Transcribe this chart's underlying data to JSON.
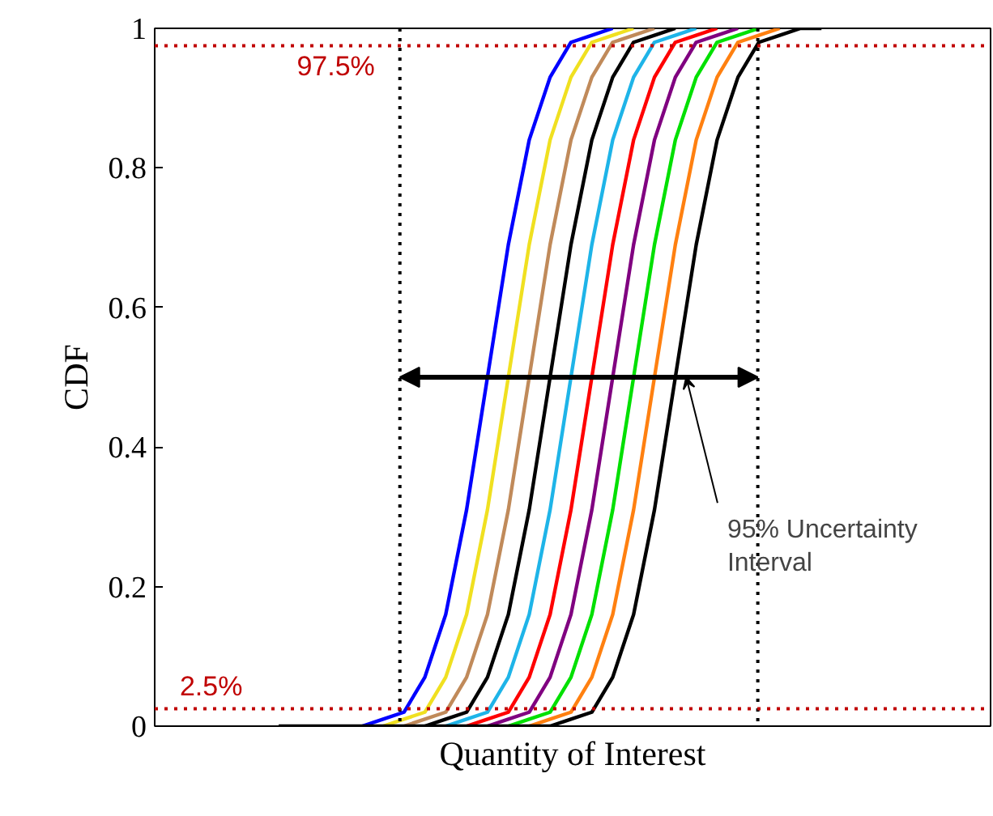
{
  "chart_data": {
    "type": "line",
    "xlabel": "Quantity of Interest",
    "ylabel": "CDF",
    "categories": [
      null,
      null,
      null,
      null,
      null,
      null,
      null,
      null,
      null,
      null,
      null,
      null,
      null,
      null,
      null,
      null,
      null,
      null,
      null,
      null,
      null,
      null,
      null,
      null,
      null,
      null,
      null
    ],
    "ylim": [
      0,
      1
    ],
    "yticks": [
      0,
      0.2,
      0.4,
      0.6,
      0.8,
      1
    ],
    "grid": false,
    "marker": "none",
    "line_style": "solid",
    "series": [
      {
        "color": "#0000ff",
        "values": [
          null,
          null,
          null,
          null,
          0,
          0.01,
          0.02,
          0.07,
          0.16,
          0.31,
          0.5,
          0.69,
          0.84,
          0.93,
          0.98,
          0.99,
          1,
          null,
          null,
          null,
          null,
          null,
          null,
          null,
          null,
          null,
          null
        ]
      },
      {
        "color": "#f0e020",
        "values": [
          null,
          null,
          null,
          null,
          null,
          0,
          0.01,
          0.02,
          0.07,
          0.16,
          0.31,
          0.5,
          0.69,
          0.84,
          0.93,
          0.98,
          0.99,
          1,
          null,
          null,
          null,
          null,
          null,
          null,
          null,
          null,
          null
        ]
      },
      {
        "color": "#c08a5a",
        "values": [
          null,
          null,
          null,
          null,
          null,
          null,
          0,
          0.01,
          0.02,
          0.07,
          0.16,
          0.31,
          0.5,
          0.69,
          0.84,
          0.93,
          0.98,
          0.99,
          1,
          null,
          null,
          null,
          null,
          null,
          null,
          null,
          null
        ]
      },
      {
        "color": "#000000",
        "values": [
          null,
          null,
          null,
          null,
          null,
          null,
          null,
          0,
          0.01,
          0.02,
          0.07,
          0.16,
          0.31,
          0.5,
          0.69,
          0.84,
          0.93,
          0.98,
          0.99,
          1,
          null,
          null,
          null,
          null,
          null,
          null,
          null
        ]
      },
      {
        "color": "#1eb4e8",
        "values": [
          null,
          null,
          null,
          null,
          null,
          null,
          null,
          null,
          0,
          0.01,
          0.02,
          0.07,
          0.16,
          0.31,
          0.5,
          0.69,
          0.84,
          0.93,
          0.98,
          0.99,
          1,
          null,
          null,
          null,
          null,
          null,
          null
        ]
      },
      {
        "color": "#ff0000",
        "values": [
          null,
          null,
          null,
          null,
          null,
          null,
          null,
          null,
          null,
          0,
          0.01,
          0.02,
          0.07,
          0.16,
          0.31,
          0.5,
          0.69,
          0.84,
          0.93,
          0.98,
          0.99,
          1,
          null,
          null,
          null,
          null,
          null
        ]
      },
      {
        "color": "#800080",
        "values": [
          null,
          null,
          null,
          null,
          null,
          null,
          null,
          null,
          null,
          null,
          0,
          0.01,
          0.02,
          0.07,
          0.16,
          0.31,
          0.5,
          0.69,
          0.84,
          0.93,
          0.98,
          0.99,
          1,
          null,
          null,
          null,
          null
        ]
      },
      {
        "color": "#00e000",
        "values": [
          null,
          null,
          null,
          null,
          null,
          null,
          null,
          null,
          null,
          null,
          null,
          0,
          0.01,
          0.02,
          0.07,
          0.16,
          0.31,
          0.5,
          0.69,
          0.84,
          0.93,
          0.98,
          0.99,
          1,
          null,
          null,
          null
        ]
      },
      {
        "color": "#ff8010",
        "values": [
          null,
          null,
          null,
          null,
          null,
          null,
          null,
          null,
          null,
          null,
          null,
          null,
          0,
          0.01,
          0.02,
          0.07,
          0.16,
          0.31,
          0.5,
          0.69,
          0.84,
          0.93,
          0.98,
          0.99,
          1,
          null,
          null
        ]
      },
      {
        "color": "#000000",
        "values": [
          0,
          0,
          0,
          0,
          0,
          0,
          0,
          0,
          0,
          0,
          0,
          0,
          0,
          0,
          0.01,
          0.02,
          0.07,
          0.16,
          0.31,
          0.5,
          0.69,
          0.84,
          0.93,
          0.98,
          0.99,
          1,
          1
        ]
      }
    ],
    "ref_lines": [
      {
        "axis": "y",
        "value": 0.975,
        "label": "97.5%",
        "color": "#c00000",
        "line_style": "dotted"
      },
      {
        "axis": "y",
        "value": 0.025,
        "label": "2.5%",
        "color": "#c00000",
        "line_style": "dotted"
      }
    ],
    "annotations": [
      "95% Uncertainty\nInterval"
    ]
  }
}
